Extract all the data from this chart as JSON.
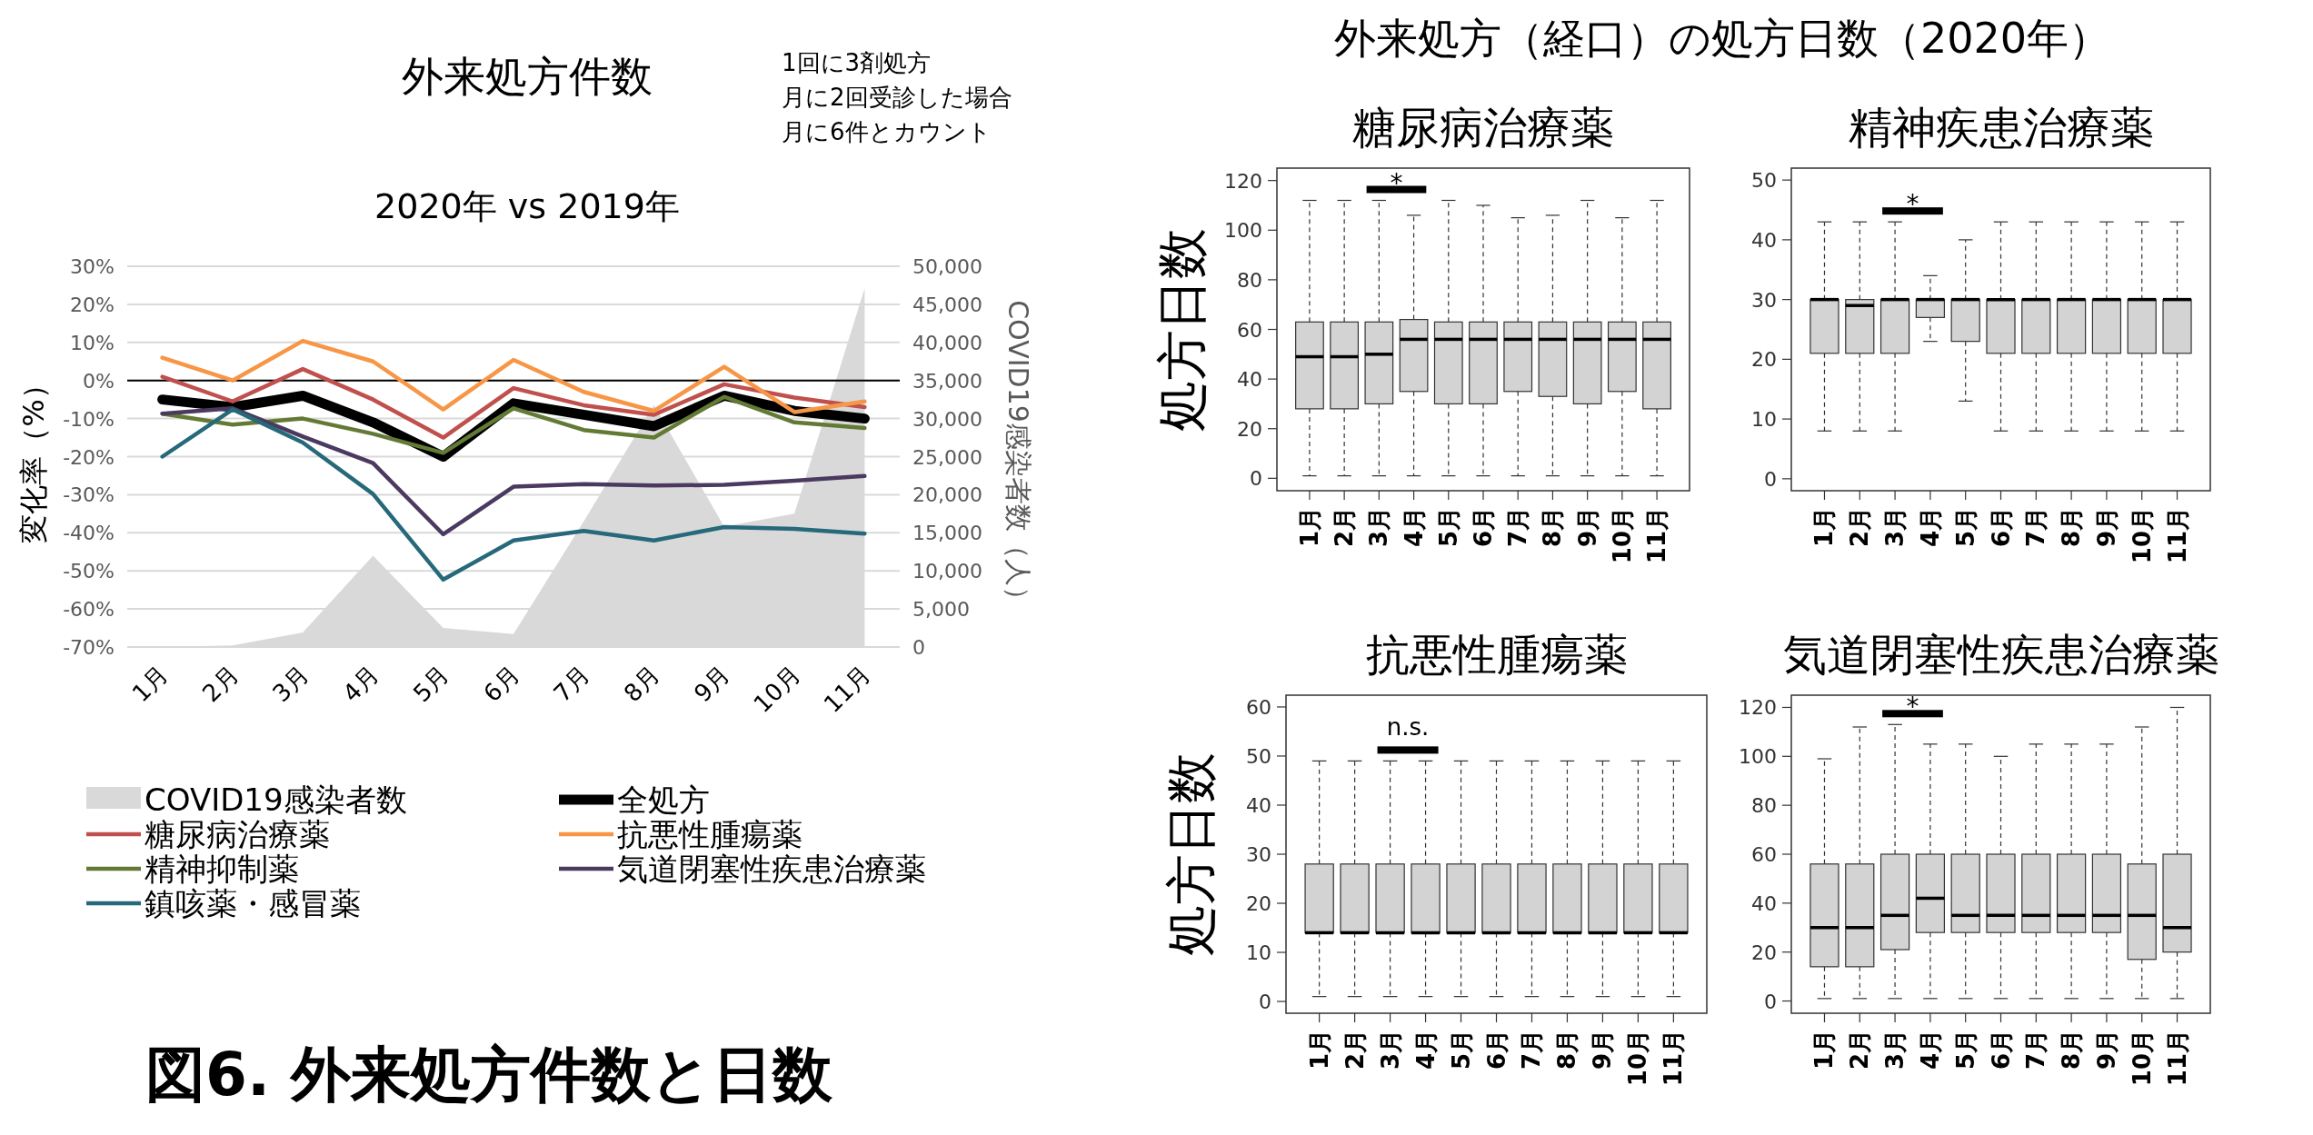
{
  "chart_data": [
    {
      "type": "line",
      "title": "外来処方件数",
      "subtitle": "2020年 vs 2019年",
      "ylabel": "変化率（%）",
      "y2label": "COVID19感染者数（人）",
      "annotations": [
        "1回に3剤処方",
        "月に2回受診した場合",
        "月に6件とカウント",
        "図6. 外来処方件数と日数"
      ],
      "categories": [
        "1月",
        "2月",
        "3月",
        "4月",
        "5月",
        "6月",
        "7月",
        "8月",
        "9月",
        "10月",
        "11月"
      ],
      "ylim": [
        -70,
        30
      ],
      "yticks": [
        {
          "value": -70,
          "label": "-70%"
        },
        {
          "value": -60,
          "label": "-60%"
        },
        {
          "value": -50,
          "label": "-50%"
        },
        {
          "value": -40,
          "label": "-40%"
        },
        {
          "value": -30,
          "label": "-30%"
        },
        {
          "value": -20,
          "label": "-20%"
        },
        {
          "value": -10,
          "label": "-10%"
        },
        {
          "value": 0,
          "label": "0%"
        },
        {
          "value": 10,
          "label": "10%"
        },
        {
          "value": 20,
          "label": "20%"
        },
        {
          "value": 30,
          "label": "30%"
        }
      ],
      "y2lim": [
        0,
        50000
      ],
      "y2ticks": [
        0,
        {
          "value": 5000,
          "label": "5,000"
        },
        {
          "value": 10000,
          "label": "10,000"
        },
        {
          "value": 15000,
          "label": "15,000"
        },
        {
          "value": 20000,
          "label": "20,000"
        },
        {
          "value": 25000,
          "label": "25,000"
        },
        {
          "value": 30000,
          "label": "30,000"
        },
        {
          "value": 35000,
          "label": "35,000"
        },
        {
          "value": 40000,
          "label": "40,000"
        },
        {
          "value": 45000,
          "label": "45,000"
        },
        {
          "value": 50000,
          "label": "50,000"
        }
      ],
      "grid": "y",
      "legend": "bottom",
      "ref_lines": [
        {
          "axis": "y",
          "value": 0,
          "color": "#000000"
        }
      ],
      "series": [
        {
          "name": "COVID19感染者数",
          "type": "area",
          "axis": "y2",
          "color": "#d9d9d9",
          "values": [
            0,
            200,
            1900,
            12000,
            2500,
            1700,
            16500,
            31800,
            15800,
            17500,
            47100
          ]
        },
        {
          "name": "全処方",
          "color": "#000000",
          "values": [
            -5,
            -7,
            -4,
            -11,
            -20,
            -6,
            -9,
            -12,
            -4,
            -8,
            -10
          ]
        },
        {
          "name": "糖尿病治療薬",
          "color": "#c0504d",
          "values": [
            1,
            -5.5,
            3,
            -5,
            -15,
            -2,
            -6.5,
            -9,
            -1,
            -4.5,
            -7
          ]
        },
        {
          "name": "抗悪性腫瘍薬",
          "color": "#f79646",
          "values": [
            6,
            0,
            10.4,
            5,
            -7.6,
            5.4,
            -3,
            -8,
            3.6,
            -8.3,
            -5.5
          ]
        },
        {
          "name": "精神抑制薬",
          "color": "#637a34",
          "values": [
            -8.7,
            -11.6,
            -10,
            -14,
            -19,
            -7.3,
            -13,
            -15,
            -4.3,
            -11,
            -12.5
          ]
        },
        {
          "name": "気道閉塞性疾患治療薬",
          "color": "#4b3a5f",
          "values": [
            -8.7,
            -7.3,
            -14.7,
            -21.7,
            -40.4,
            -27.9,
            -27.2,
            -27.6,
            -27.4,
            -26.3,
            -25.1
          ]
        },
        {
          "name": "鎮咳薬・感冒薬",
          "color": "#25697a",
          "values": [
            -20,
            -7.6,
            -16.3,
            -29.8,
            -52.3,
            -42,
            -39.5,
            -42,
            -38.5,
            -39,
            -40.2
          ]
        }
      ]
    },
    {
      "type": "box",
      "title": "糖尿病治療薬",
      "ylabel": "処方日数",
      "annotations": [
        "外来処方（経口）の処方日数（2020年）",
        "*"
      ],
      "categories": [
        "1月",
        "2月",
        "3月",
        "4月",
        "5月",
        "6月",
        "7月",
        "8月",
        "9月",
        "10月",
        "11月"
      ],
      "ylim": [
        -5,
        125
      ],
      "yticks": [
        0,
        20,
        40,
        60,
        80,
        100,
        120
      ],
      "color": "#d3d3d3",
      "boxes": [
        {
          "low": 1,
          "q1": 28,
          "median": 49,
          "q3": 63,
          "high": 112
        },
        {
          "low": 1,
          "q1": 28,
          "median": 49,
          "q3": 63,
          "high": 112
        },
        {
          "low": 1,
          "q1": 30,
          "median": 50,
          "q3": 63,
          "high": 112
        },
        {
          "low": 1,
          "q1": 35,
          "median": 56,
          "q3": 64,
          "high": 106
        },
        {
          "low": 1,
          "q1": 30,
          "median": 56,
          "q3": 63,
          "high": 112
        },
        {
          "low": 1,
          "q1": 30,
          "median": 56,
          "q3": 63,
          "high": 110
        },
        {
          "low": 1,
          "q1": 35,
          "median": 56,
          "q3": 63,
          "high": 105
        },
        {
          "low": 1,
          "q1": 33,
          "median": 56,
          "q3": 63,
          "high": 106
        },
        {
          "low": 1,
          "q1": 30,
          "median": 56,
          "q3": 63,
          "high": 112
        },
        {
          "low": 1,
          "q1": 35,
          "median": 56,
          "q3": 63,
          "high": 105
        },
        {
          "low": 1,
          "q1": 28,
          "median": 56,
          "q3": 63,
          "high": 112
        }
      ]
    },
    {
      "type": "box",
      "title": "精神疾患治療薬",
      "annotations": [
        "*"
      ],
      "categories": [
        "1月",
        "2月",
        "3月",
        "4月",
        "5月",
        "6月",
        "7月",
        "8月",
        "9月",
        "10月",
        "11月"
      ],
      "ylim": [
        -2,
        52
      ],
      "yticks": [
        0,
        10,
        20,
        30,
        40,
        50
      ],
      "color": "#d3d3d3",
      "boxes": [
        {
          "low": 8,
          "q1": 21,
          "median": 30,
          "q3": 30,
          "high": 43
        },
        {
          "low": 8,
          "q1": 21,
          "median": 29,
          "q3": 30,
          "high": 43
        },
        {
          "low": 8,
          "q1": 21,
          "median": 30,
          "q3": 30,
          "high": 43
        },
        {
          "low": 23,
          "q1": 27,
          "median": 30,
          "q3": 30,
          "high": 34
        },
        {
          "low": 13,
          "q1": 23,
          "median": 30,
          "q3": 30,
          "high": 40
        },
        {
          "low": 8,
          "q1": 21,
          "median": 30,
          "q3": 30,
          "high": 43
        },
        {
          "low": 8,
          "q1": 21,
          "median": 30,
          "q3": 30,
          "high": 43
        },
        {
          "low": 8,
          "q1": 21,
          "median": 30,
          "q3": 30,
          "high": 43
        },
        {
          "low": 8,
          "q1": 21,
          "median": 30,
          "q3": 30,
          "high": 43
        },
        {
          "low": 8,
          "q1": 21,
          "median": 30,
          "q3": 30,
          "high": 43
        },
        {
          "low": 8,
          "q1": 21,
          "median": 30,
          "q3": 30,
          "high": 43
        }
      ]
    },
    {
      "type": "box",
      "title": "抗悪性腫瘍薬",
      "ylabel": "処方日数",
      "annotations": [
        "n.s."
      ],
      "categories": [
        "1月",
        "2月",
        "3月",
        "4月",
        "5月",
        "6月",
        "7月",
        "8月",
        "9月",
        "10月",
        "11月"
      ],
      "ylim": [
        -2.4,
        62.4
      ],
      "yticks": [
        0,
        10,
        20,
        30,
        40,
        50,
        60
      ],
      "color": "#d3d3d3",
      "boxes": [
        {
          "low": 1,
          "q1": 14,
          "median": 14,
          "q3": 28,
          "high": 49
        },
        {
          "low": 1,
          "q1": 14,
          "median": 14,
          "q3": 28,
          "high": 49
        },
        {
          "low": 1,
          "q1": 14,
          "median": 14,
          "q3": 28,
          "high": 49
        },
        {
          "low": 1,
          "q1": 14,
          "median": 14,
          "q3": 28,
          "high": 49
        },
        {
          "low": 1,
          "q1": 14,
          "median": 14,
          "q3": 28,
          "high": 49
        },
        {
          "low": 1,
          "q1": 14,
          "median": 14,
          "q3": 28,
          "high": 49
        },
        {
          "low": 1,
          "q1": 14,
          "median": 14,
          "q3": 28,
          "high": 49
        },
        {
          "low": 1,
          "q1": 14,
          "median": 14,
          "q3": 28,
          "high": 49
        },
        {
          "low": 1,
          "q1": 14,
          "median": 14,
          "q3": 28,
          "high": 49
        },
        {
          "low": 1,
          "q1": 14,
          "median": 14,
          "q3": 28,
          "high": 49
        },
        {
          "low": 1,
          "q1": 14,
          "median": 14,
          "q3": 28,
          "high": 49
        }
      ]
    },
    {
      "type": "box",
      "title": "気道閉塞性疾患治療薬",
      "annotations": [
        "*"
      ],
      "categories": [
        "1月",
        "2月",
        "3月",
        "4月",
        "5月",
        "6月",
        "7月",
        "8月",
        "9月",
        "10月",
        "11月"
      ],
      "ylim": [
        -5,
        125
      ],
      "yticks": [
        0,
        20,
        40,
        60,
        80,
        100,
        120
      ],
      "color": "#d3d3d3",
      "boxes": [
        {
          "low": 1,
          "q1": 14,
          "median": 30,
          "q3": 56,
          "high": 99
        },
        {
          "low": 1,
          "q1": 14,
          "median": 30,
          "q3": 56,
          "high": 112
        },
        {
          "low": 1,
          "q1": 21,
          "median": 35,
          "q3": 60,
          "high": 113
        },
        {
          "low": 1,
          "q1": 28,
          "median": 42,
          "q3": 60,
          "high": 105
        },
        {
          "low": 1,
          "q1": 28,
          "median": 35,
          "q3": 60,
          "high": 105
        },
        {
          "low": 1,
          "q1": 28,
          "median": 35,
          "q3": 60,
          "high": 100
        },
        {
          "low": 1,
          "q1": 28,
          "median": 35,
          "q3": 60,
          "high": 105
        },
        {
          "low": 1,
          "q1": 28,
          "median": 35,
          "q3": 60,
          "high": 105
        },
        {
          "low": 1,
          "q1": 28,
          "median": 35,
          "q3": 60,
          "high": 105
        },
        {
          "low": 1,
          "q1": 17,
          "median": 35,
          "q3": 56,
          "high": 112
        },
        {
          "low": 1,
          "q1": 20,
          "median": 30,
          "q3": 60,
          "high": 120
        }
      ]
    }
  ]
}
